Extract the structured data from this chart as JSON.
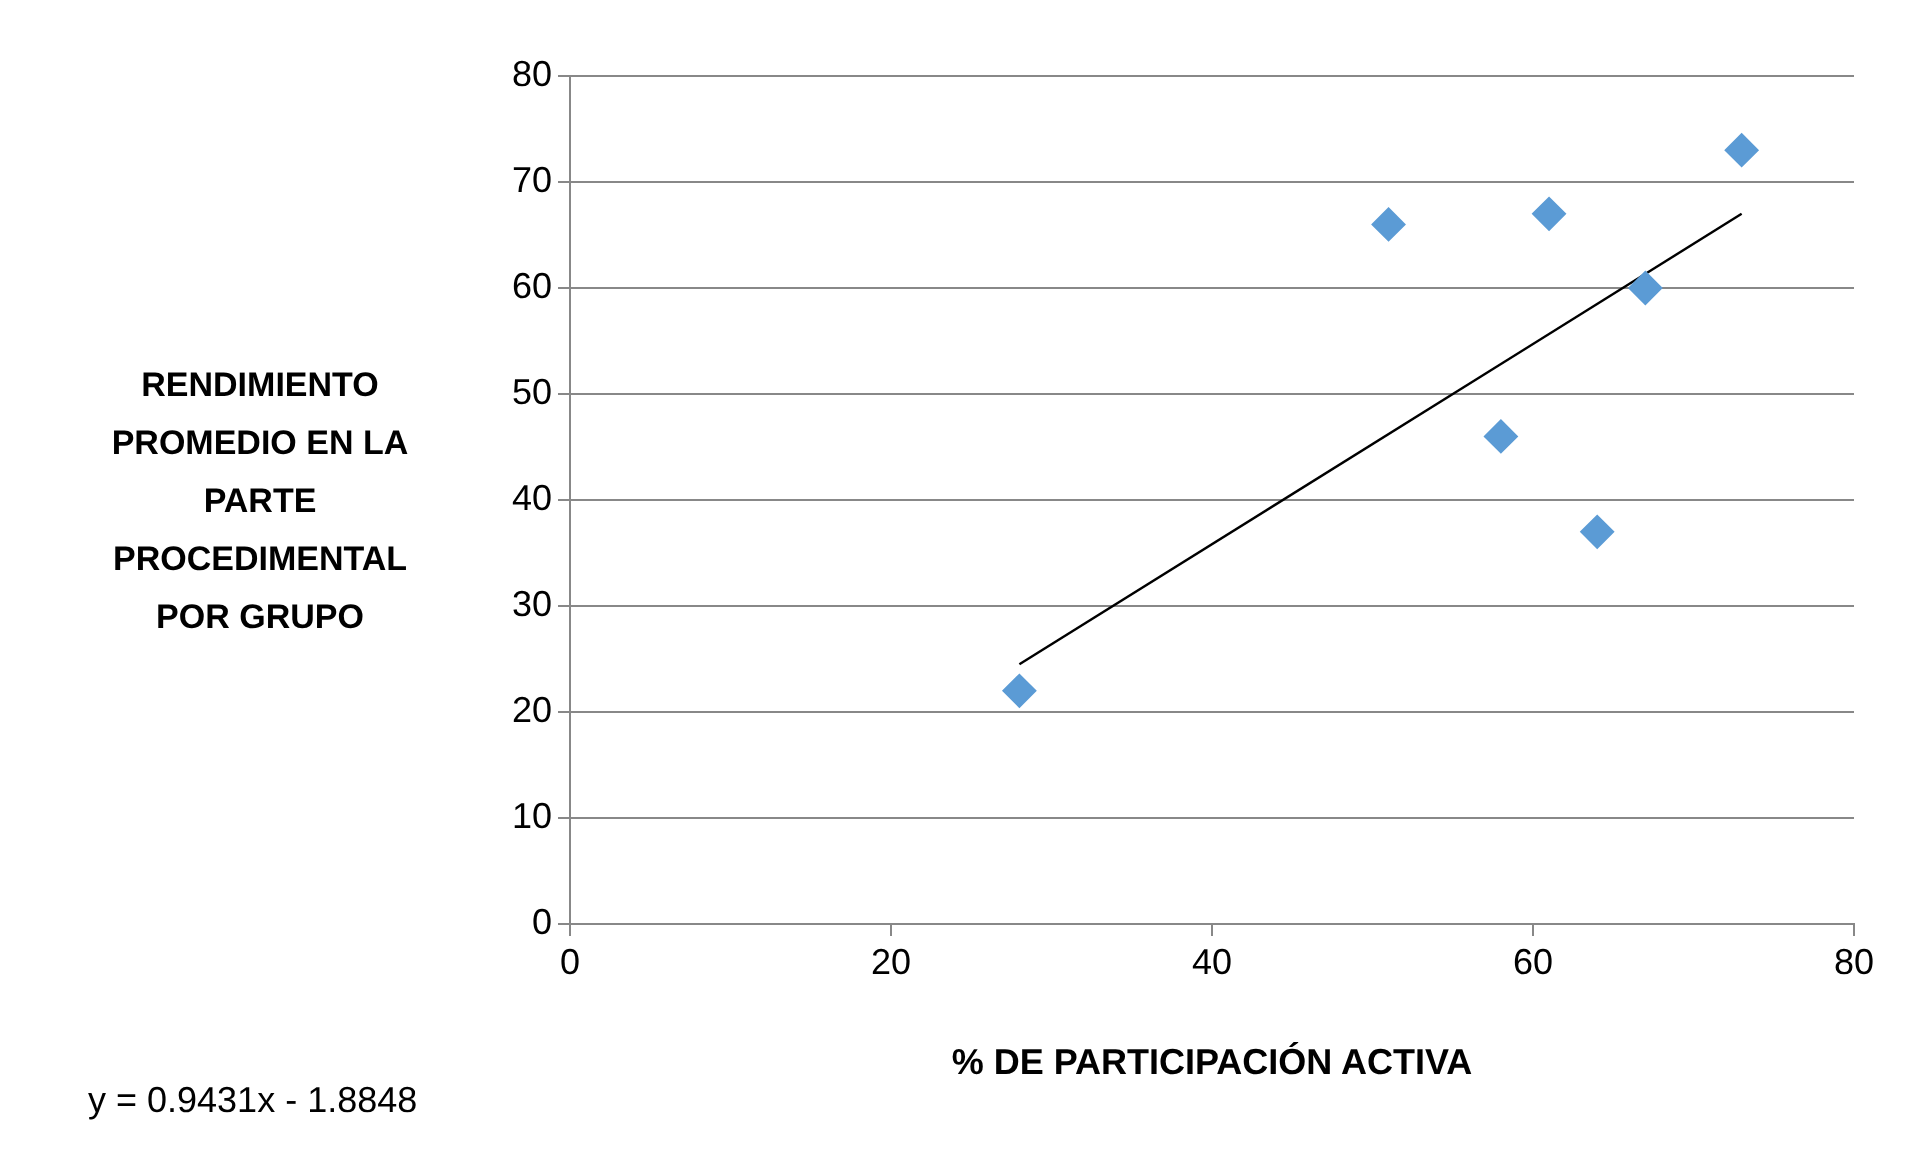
{
  "chart_data": {
    "type": "scatter",
    "xlabel": "% DE PARTICIPACIÓN ACTIVA",
    "ylabel": "RENDIMIENTO PROMEDIO EN LA PARTE PROCEDIMENTAL POR GRUPO",
    "xlim": [
      0,
      80
    ],
    "ylim": [
      0,
      80
    ],
    "xticks": [
      0,
      20,
      40,
      60,
      80
    ],
    "yticks": [
      0,
      10,
      20,
      30,
      40,
      50,
      60,
      70,
      80
    ],
    "grid": "y",
    "annotations": [
      "y = 0.9431x - 1.8848"
    ],
    "series": [
      {
        "color": "#5b9bd5",
        "marker": "diamond",
        "x": [
          28,
          51,
          58,
          61,
          64,
          67,
          73
        ],
        "values": [
          22,
          66,
          46,
          67,
          37,
          60,
          73
        ]
      },
      {
        "type": "line",
        "color": "#000000",
        "marker": "none",
        "x": [
          28,
          73
        ],
        "values": [
          24.5,
          67.0
        ]
      }
    ]
  }
}
